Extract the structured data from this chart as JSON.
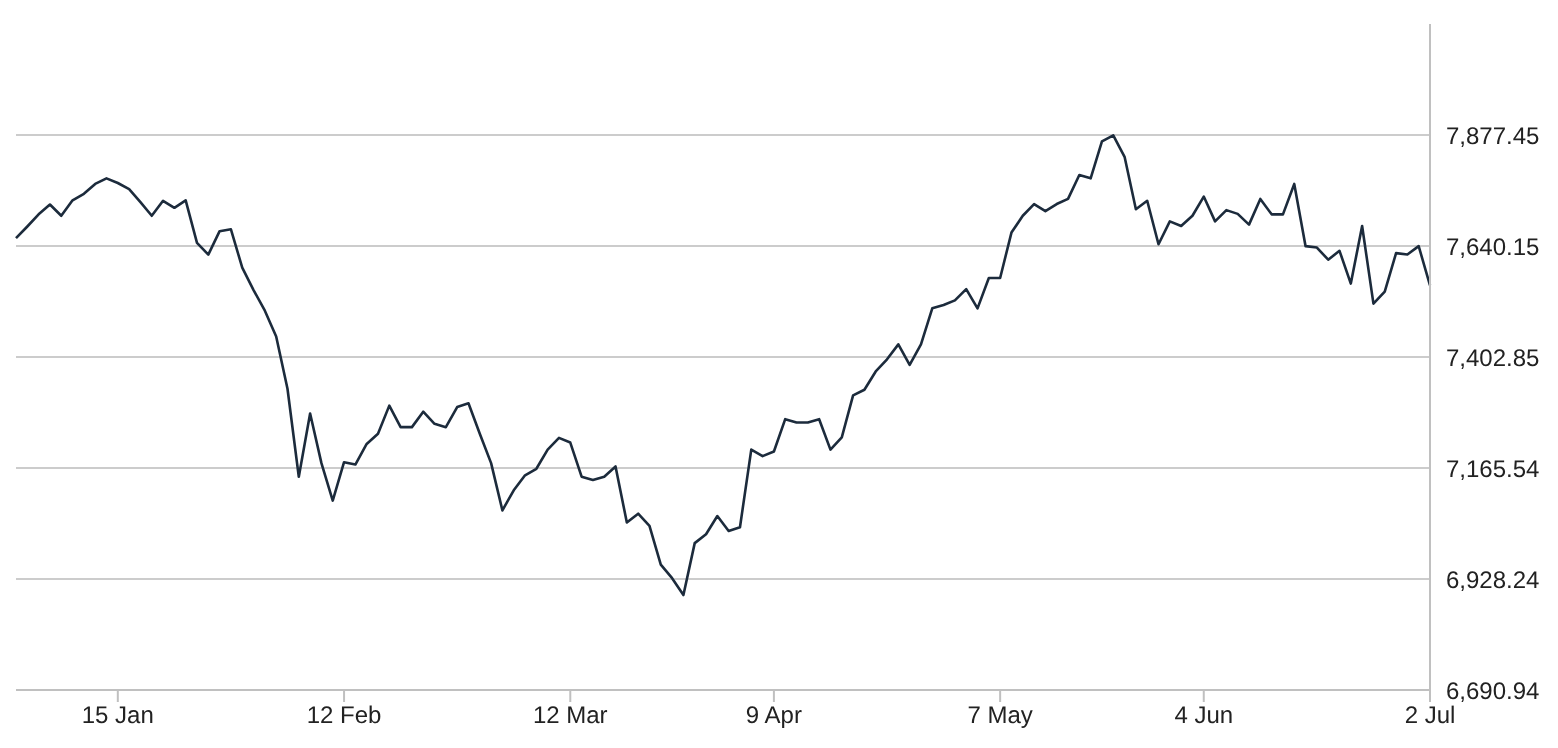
{
  "chart_data": {
    "type": "line",
    "categories": [
      null,
      null,
      null,
      null,
      null,
      null,
      null,
      null,
      null,
      "15 Jan",
      null,
      null,
      null,
      null,
      null,
      null,
      null,
      null,
      null,
      null,
      null,
      null,
      null,
      null,
      null,
      null,
      null,
      null,
      null,
      "12 Feb",
      null,
      null,
      null,
      null,
      null,
      null,
      null,
      null,
      null,
      null,
      null,
      null,
      null,
      null,
      null,
      null,
      null,
      null,
      null,
      "12 Mar",
      null,
      null,
      null,
      null,
      null,
      null,
      null,
      null,
      null,
      null,
      null,
      null,
      null,
      null,
      null,
      null,
      null,
      "9 Apr",
      null,
      null,
      null,
      null,
      null,
      null,
      null,
      null,
      null,
      null,
      null,
      null,
      null,
      null,
      null,
      null,
      null,
      null,
      null,
      "7 May",
      null,
      null,
      null,
      null,
      null,
      null,
      null,
      null,
      null,
      null,
      null,
      null,
      null,
      null,
      null,
      null,
      null,
      "4 Jun",
      null,
      null,
      null,
      null,
      null,
      null,
      null,
      null,
      null,
      null,
      null,
      null,
      null,
      null,
      null,
      null,
      null,
      null,
      null,
      "2 Jul"
    ],
    "series": [
      {
        "color": "#1c2b3c",
        "values": [
          7657,
          7682,
          7708,
          7729,
          7705,
          7738,
          7752,
          7773,
          7785,
          7775,
          7762,
          7734,
          7705,
          7737,
          7722,
          7738,
          7647,
          7622,
          7672,
          7676,
          7594,
          7546,
          7502,
          7447,
          7335,
          7147,
          7282,
          7176,
          7096,
          7178,
          7173,
          7217,
          7239,
          7299,
          7253,
          7253,
          7286,
          7260,
          7253,
          7296,
          7304,
          7239,
          7176,
          7075,
          7118,
          7150,
          7164,
          7205,
          7230,
          7220,
          7147,
          7140,
          7147,
          7169,
          7049,
          7068,
          7042,
          6959,
          6930,
          6894,
          7005,
          7024,
          7063,
          7031,
          7039,
          7205,
          7191,
          7201,
          7270,
          7263,
          7263,
          7270,
          7205,
          7231,
          7321,
          7333,
          7372,
          7398,
          7430,
          7386,
          7430,
          7507,
          7514,
          7524,
          7548,
          7507,
          7572,
          7572,
          7669,
          7705,
          7730,
          7715,
          7730,
          7741,
          7792,
          7785,
          7864,
          7877,
          7831,
          7719,
          7737,
          7644,
          7693,
          7683,
          7705,
          7746,
          7693,
          7717,
          7709,
          7686,
          7741,
          7708,
          7708,
          7773,
          7640,
          7637,
          7611,
          7630,
          7560,
          7683,
          7517,
          7543,
          7625,
          7622,
          7640,
          7556
        ]
      }
    ],
    "ylim": [
      6690.94,
      8115
    ],
    "yticks": [
      {
        "value": 6690.94,
        "label": "6,690.94"
      },
      {
        "value": 6928.24,
        "label": "6,928.24"
      },
      {
        "value": 7165.54,
        "label": "7,165.54"
      },
      {
        "value": 7402.85,
        "label": "7,402.85"
      },
      {
        "value": 7640.15,
        "label": "7,640.15"
      },
      {
        "value": 7877.45,
        "label": "7,877.45"
      }
    ],
    "grid": "y",
    "marker": "none",
    "line_style": "solid"
  }
}
